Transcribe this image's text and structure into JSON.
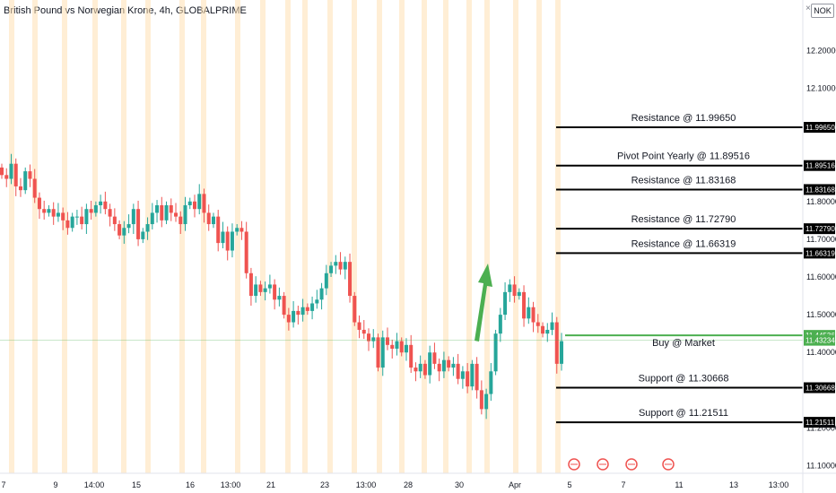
{
  "header": {
    "title": "British Pound vs Norwegian Krone, 4h, GLOBALPRIME"
  },
  "currency_badge": "NOK",
  "colors": {
    "up": "#26a69a",
    "down": "#ef5350",
    "level": "#000000",
    "buy": "#4caf50",
    "session": "#ffe0b2",
    "arrow": "#4caf50"
  },
  "chart_data": {
    "type": "candlestick",
    "title": "British Pound vs Norwegian Krone, 4h, GLOBALPRIME",
    "y_range": [
      11.08,
      12.31
    ],
    "y_ticks": [
      "12.20000",
      "12.10000",
      "11.80000",
      "11.70000",
      "11.60000",
      "11.50000",
      "11.40000",
      "11.20000",
      "11.10000"
    ],
    "x_ticks": [
      "7",
      "9",
      "14:00",
      "15",
      "16",
      "13:00",
      "21",
      "23",
      "13:00",
      "28",
      "30",
      "Apr",
      "5",
      "7",
      "11",
      "13",
      "13:00"
    ],
    "levels": [
      {
        "label": "Resistance @ 11.99650",
        "value": 11.9965,
        "tag": "11.99650",
        "kind": "resistance"
      },
      {
        "label": "Pivot Point Yearly @ 11.89516",
        "value": 11.89516,
        "tag": "11.89516",
        "kind": "pivot"
      },
      {
        "label": "Resistance @ 11.83168",
        "value": 11.83168,
        "tag": "11.83168",
        "kind": "resistance"
      },
      {
        "label": "Resistance @ 11.72790",
        "value": 11.7279,
        "tag": "11.72790",
        "kind": "resistance"
      },
      {
        "label": "Resistance @ 11.66319",
        "value": 11.66319,
        "tag": "11.66319",
        "kind": "resistance"
      },
      {
        "label": "Buy @ Market",
        "value": 11.44536,
        "tag": "11.44536",
        "kind": "buy"
      },
      {
        "label": "Support @ 11.30668",
        "value": 11.30668,
        "tag": "11.30668",
        "kind": "support"
      },
      {
        "label": "Support @ 11.21511",
        "value": 11.21511,
        "tag": "11.21511",
        "kind": "support"
      }
    ],
    "current_price": {
      "value": 11.43234,
      "tag": "11.43234"
    },
    "candles_close": [
      11.87,
      11.86,
      11.9,
      11.84,
      11.83,
      11.88,
      11.86,
      11.81,
      11.78,
      11.77,
      11.78,
      11.76,
      11.77,
      11.75,
      11.73,
      11.76,
      11.76,
      11.74,
      11.78,
      11.77,
      11.79,
      11.8,
      11.78,
      11.76,
      11.74,
      11.71,
      11.73,
      11.74,
      11.78,
      11.7,
      11.72,
      11.74,
      11.77,
      11.79,
      11.75,
      11.79,
      11.77,
      11.76,
      11.74,
      11.79,
      11.8,
      11.78,
      11.82,
      11.77,
      11.74,
      11.76,
      11.69,
      11.72,
      11.67,
      11.72,
      11.73,
      11.72,
      11.61,
      11.55,
      11.58,
      11.56,
      11.57,
      11.58,
      11.54,
      11.55,
      11.5,
      11.48,
      11.51,
      11.5,
      11.52,
      11.51,
      11.53,
      11.54,
      11.57,
      11.61,
      11.63,
      11.64,
      11.62,
      11.64,
      11.55,
      11.48,
      11.46,
      11.45,
      11.43,
      11.44,
      11.36,
      11.44,
      11.42,
      11.41,
      11.43,
      11.4,
      11.42,
      11.36,
      11.35,
      11.37,
      11.34,
      11.4,
      11.37,
      11.35,
      11.38,
      11.36,
      11.37,
      11.33,
      11.35,
      11.31,
      11.37,
      11.3,
      11.25,
      11.29,
      11.35,
      11.45,
      11.5,
      11.56,
      11.58,
      11.55,
      11.56,
      11.49,
      11.52,
      11.48,
      11.47,
      11.45,
      11.46,
      11.48,
      11.37,
      11.43
    ],
    "events": 4
  }
}
